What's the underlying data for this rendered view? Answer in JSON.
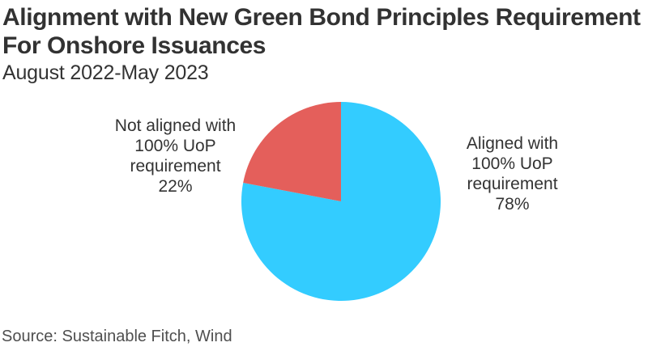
{
  "header": {
    "title_lines": [
      "Alignment with New Green Bond Principles Requirement",
      "For Onshore Issuances"
    ],
    "subtitle": "August 2022-May 2023"
  },
  "footer": {
    "source": "Source: Sustainable Fitch, Wind"
  },
  "colors": {
    "aligned_slice": "#33ccff",
    "not_aligned_slice": "#e45f5b",
    "title_text": "#323232",
    "body_text": "#333333",
    "source_text": "#4f4f4f",
    "background": "#ffffff"
  },
  "chart_data": {
    "type": "pie",
    "title": "Alignment with New Green Bond Principles Requirement For Onshore Issuances",
    "subtitle": "August 2022-May 2023",
    "source": "Source: Sustainable Fitch, Wind",
    "start_angle_deg": 0,
    "direction": "clockwise",
    "labels_position": "outside",
    "legend": "none",
    "slices": [
      {
        "label": "Aligned with 100% UoP requirement",
        "value": 78,
        "value_display": "78%",
        "color": "#33ccff",
        "label_side": "right"
      },
      {
        "label": "Not aligned with 100% UoP requirement",
        "value": 22,
        "value_display": "22%",
        "color": "#e45f5b",
        "label_side": "left"
      }
    ]
  }
}
